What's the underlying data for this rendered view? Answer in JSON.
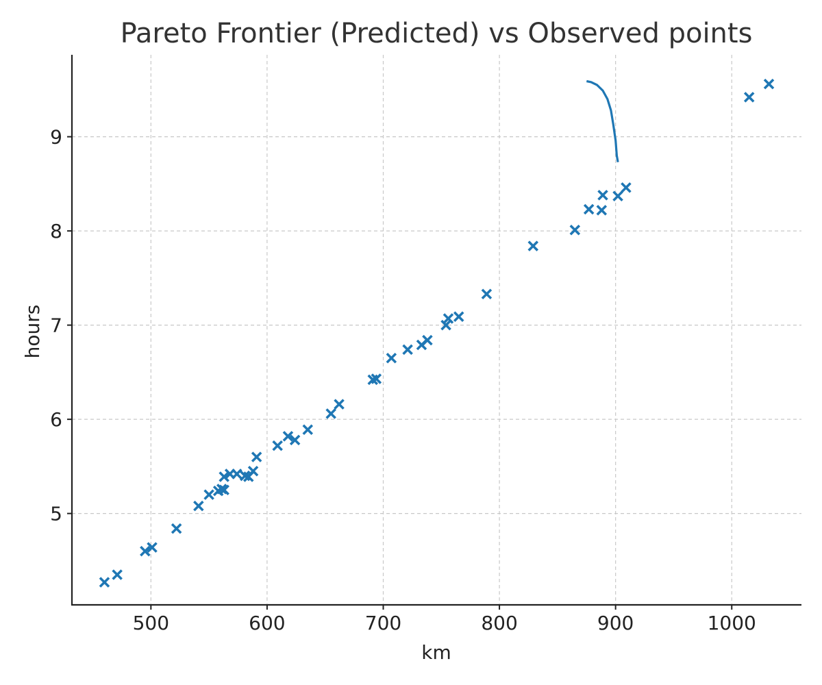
{
  "chart_data": {
    "type": "scatter",
    "title": "Pareto Frontier (Predicted) vs Observed points",
    "xlabel": "km",
    "ylabel": "hours",
    "xlim": [
      432,
      1060
    ],
    "ylim": [
      4.03,
      9.87
    ],
    "xticks": [
      500,
      600,
      700,
      800,
      900,
      1000
    ],
    "yticks": [
      5,
      6,
      7,
      8,
      9
    ],
    "grid": true,
    "colors": {
      "series": "#1f77b4"
    },
    "series": [
      {
        "kind": "scatter",
        "marker": "x",
        "points": [
          [
            460,
            4.27
          ],
          [
            471,
            4.35
          ],
          [
            495,
            4.6
          ],
          [
            501,
            4.64
          ],
          [
            522,
            4.84
          ],
          [
            541,
            5.08
          ],
          [
            550,
            5.2
          ],
          [
            558,
            5.24
          ],
          [
            561,
            5.26
          ],
          [
            563,
            5.25
          ],
          [
            563,
            5.39
          ],
          [
            568,
            5.42
          ],
          [
            574,
            5.42
          ],
          [
            581,
            5.4
          ],
          [
            584,
            5.39
          ],
          [
            588,
            5.45
          ],
          [
            591,
            5.6
          ],
          [
            609,
            5.72
          ],
          [
            618,
            5.82
          ],
          [
            624,
            5.78
          ],
          [
            635,
            5.89
          ],
          [
            655,
            6.06
          ],
          [
            662,
            6.16
          ],
          [
            691,
            6.42
          ],
          [
            694,
            6.43
          ],
          [
            707,
            6.65
          ],
          [
            721,
            6.74
          ],
          [
            733,
            6.79
          ],
          [
            738,
            6.84
          ],
          [
            754,
            7.0
          ],
          [
            756,
            7.07
          ],
          [
            765,
            7.09
          ],
          [
            789,
            7.33
          ],
          [
            829,
            7.84
          ],
          [
            865,
            8.01
          ],
          [
            877,
            8.23
          ],
          [
            888,
            8.22
          ],
          [
            889,
            8.38
          ],
          [
            902,
            8.37
          ],
          [
            909,
            8.46
          ],
          [
            1015,
            9.42
          ],
          [
            1032,
            9.56
          ]
        ]
      },
      {
        "kind": "line",
        "points": [
          [
            875,
            9.59
          ],
          [
            879,
            9.58
          ],
          [
            884,
            9.55
          ],
          [
            889,
            9.49
          ],
          [
            893,
            9.4
          ],
          [
            896,
            9.28
          ],
          [
            898,
            9.13
          ],
          [
            900,
            8.96
          ],
          [
            901,
            8.8
          ],
          [
            902,
            8.73
          ]
        ]
      }
    ]
  }
}
